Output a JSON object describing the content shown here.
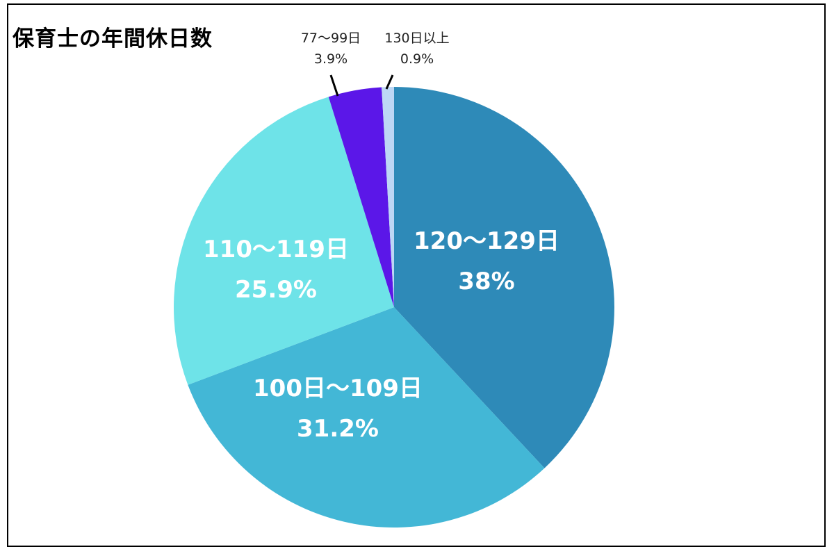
{
  "chart_data": {
    "type": "pie",
    "title": "保育士の年間休日数",
    "categories": [
      "120〜129日",
      "100日〜109日",
      "110〜119日",
      "77〜99日",
      "130日以上"
    ],
    "values": [
      38,
      31.2,
      25.9,
      3.9,
      0.9
    ],
    "unit": "%",
    "start_angle_deg": 0,
    "direction": "clockwise",
    "colors": [
      "#2E8AB8",
      "#43B7D6",
      "#6EE3E8",
      "#5B17E8",
      "#BDD7F5"
    ],
    "labels": [
      {
        "category": "120〜129日",
        "percent": "38%",
        "position": "inside"
      },
      {
        "category": "100日〜109日",
        "percent": "31.2%",
        "position": "inside"
      },
      {
        "category": "110〜119日",
        "percent": "25.9%",
        "position": "inside"
      },
      {
        "category": "77〜99日",
        "percent": "3.9%",
        "position": "outside-leader"
      },
      {
        "category": "130日以上",
        "percent": "0.9%",
        "position": "outside-leader"
      }
    ],
    "legend": "none"
  },
  "header": {
    "title": "保育士の年間休日数"
  },
  "slices": [
    {
      "label": "120〜129日",
      "percent_text": "38%"
    },
    {
      "label": "100日〜109日",
      "percent_text": "31.2%"
    },
    {
      "label": "110〜119日",
      "percent_text": "25.9%"
    },
    {
      "label": "77〜99日",
      "percent_text": "3.9%"
    },
    {
      "label": "130日以上",
      "percent_text": "0.9%"
    }
  ]
}
